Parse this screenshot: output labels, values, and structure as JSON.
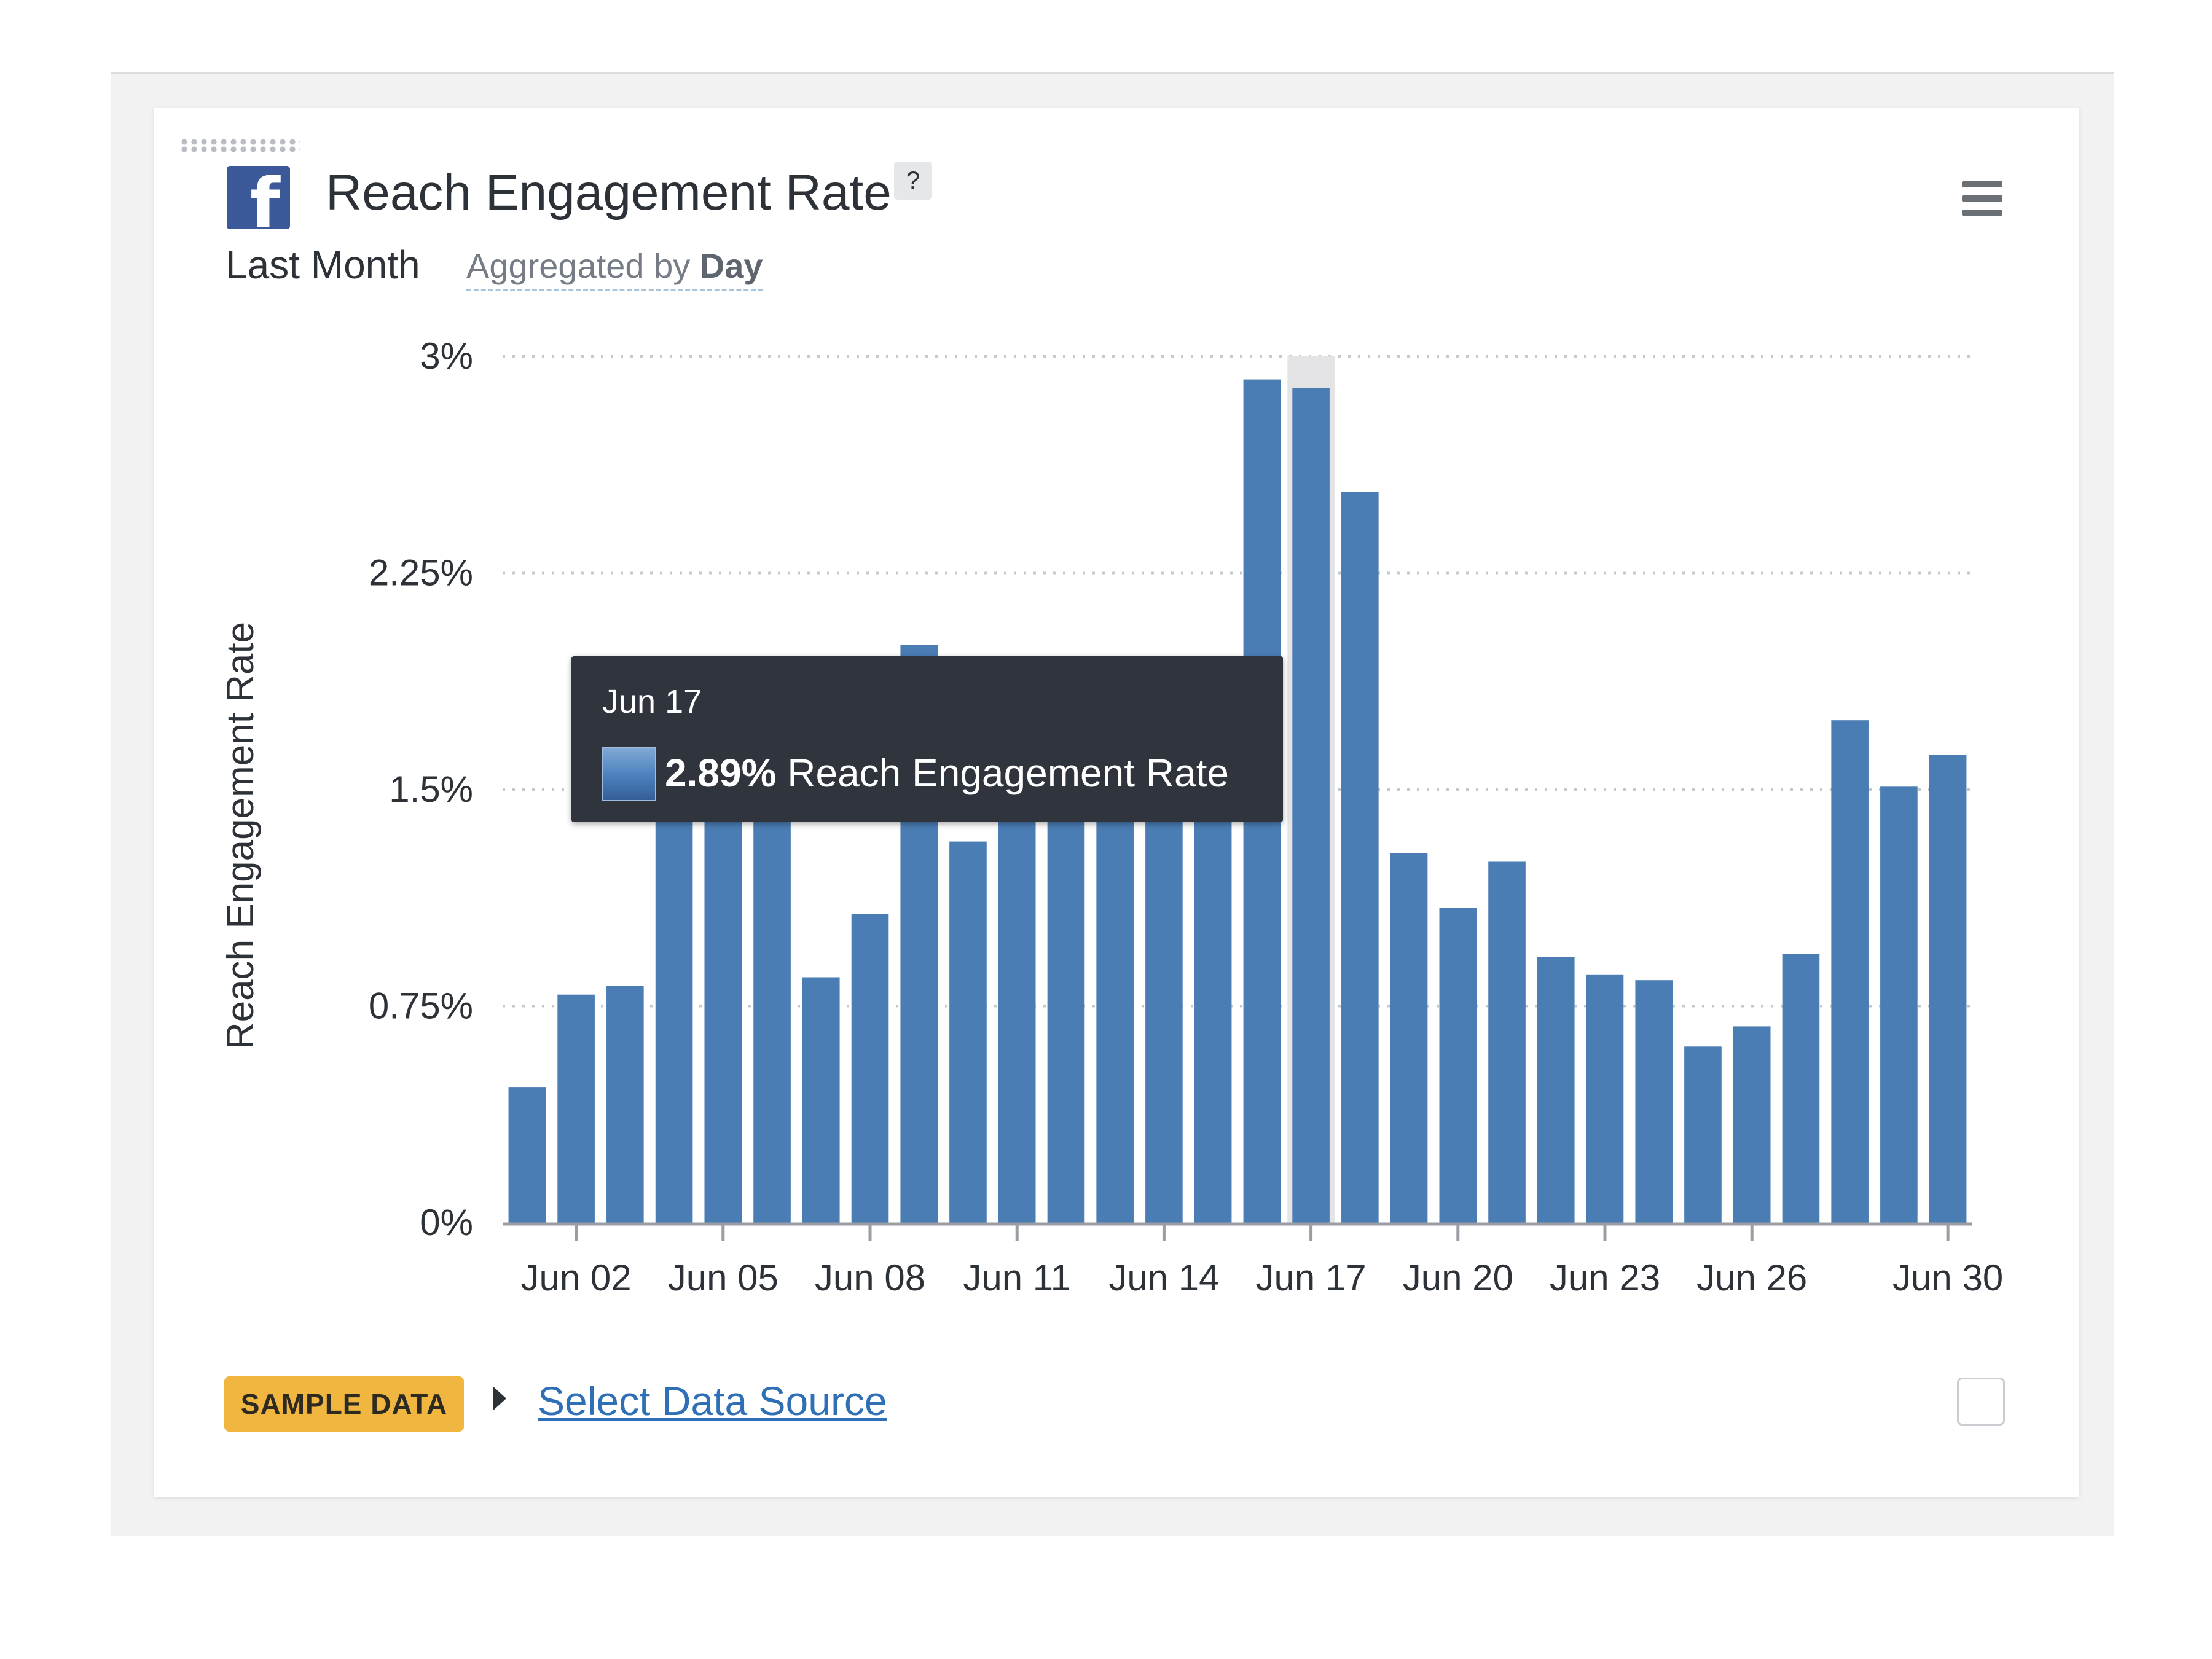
{
  "header": {
    "title": "Reach Engagement Rate",
    "help_label": "?",
    "period": "Last Month",
    "aggregated_prefix": "Aggregated by",
    "aggregated_value": "Day",
    "logo_glyph": "f",
    "logo_icon": "facebook-logo-icon",
    "menu_icon": "hamburger-menu-icon"
  },
  "tooltip": {
    "date": "Jun 17",
    "value": "2.89%",
    "series": "Reach Engagement Rate"
  },
  "footer": {
    "badge": "SAMPLE DATA",
    "link": "Select Data Source"
  },
  "colors": {
    "bar": "#4a7db4",
    "hover_band": "#e4e4e6",
    "badge": "#f0b63f",
    "facebook": "#3b5998",
    "tooltip_bg": "#2f343d"
  },
  "chart_data": {
    "type": "bar",
    "title": "Reach Engagement Rate",
    "ylabel": "Reach Engagement Rate",
    "xlabel": "",
    "ylim": [
      0,
      3
    ],
    "yticks": [
      0,
      0.75,
      1.5,
      2.25,
      3
    ],
    "ytick_labels": [
      "0%",
      "0.75%",
      "1.5%",
      "2.25%",
      "3%"
    ],
    "grid": true,
    "categories": [
      "Jun 01",
      "Jun 02",
      "Jun 03",
      "Jun 04",
      "Jun 05",
      "Jun 06",
      "Jun 07",
      "Jun 08",
      "Jun 09",
      "Jun 10",
      "Jun 11",
      "Jun 12",
      "Jun 13",
      "Jun 14",
      "Jun 15",
      "Jun 16",
      "Jun 17",
      "Jun 18",
      "Jun 19",
      "Jun 20",
      "Jun 21",
      "Jun 22",
      "Jun 23",
      "Jun 24",
      "Jun 25",
      "Jun 26",
      "Jun 27",
      "Jun 28",
      "Jun 29",
      "Jun 30"
    ],
    "xtick_labels": [
      "Jun 02",
      "Jun 05",
      "Jun 08",
      "Jun 11",
      "Jun 14",
      "Jun 17",
      "Jun 20",
      "Jun 23",
      "Jun 26",
      "Jun 30"
    ],
    "xtick_categories": [
      "Jun 02",
      "Jun 05",
      "Jun 08",
      "Jun 11",
      "Jun 14",
      "Jun 17",
      "Jun 20",
      "Jun 23",
      "Jun 26",
      "Jun 30"
    ],
    "values": [
      0.47,
      0.79,
      0.82,
      1.6,
      1.5,
      1.55,
      0.85,
      1.07,
      2.0,
      1.32,
      1.6,
      1.39,
      1.6,
      1.62,
      1.7,
      2.92,
      2.89,
      2.53,
      1.28,
      1.09,
      1.25,
      0.92,
      0.86,
      0.84,
      0.61,
      0.68,
      0.93,
      1.74,
      1.51,
      1.62
    ],
    "highlighted_category": "Jun 17"
  }
}
